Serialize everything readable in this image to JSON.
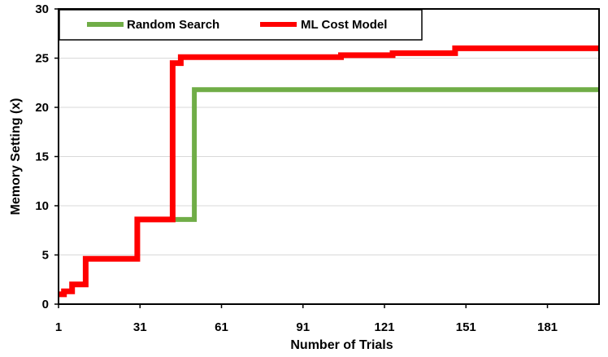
{
  "chart_data": {
    "type": "line",
    "title": "",
    "xlabel": "Number of Trials",
    "ylabel": "Memory Setting (x)",
    "xlim": [
      1,
      200
    ],
    "ylim": [
      0,
      30
    ],
    "xticks": [
      1,
      31,
      61,
      91,
      121,
      151,
      181
    ],
    "yticks": [
      0,
      5,
      10,
      15,
      20,
      25,
      30
    ],
    "legend_position": "top-left",
    "step": true,
    "series": [
      {
        "name": "Random Search",
        "color": "#70ad47",
        "points": [
          [
            1,
            1.0
          ],
          [
            3,
            1.0
          ],
          [
            3,
            1.3
          ],
          [
            6,
            1.3
          ],
          [
            6,
            2.0
          ],
          [
            11,
            2.0
          ],
          [
            11,
            4.6
          ],
          [
            30,
            4.6
          ],
          [
            30,
            8.6
          ],
          [
            51,
            8.6
          ],
          [
            51,
            21.8
          ],
          [
            200,
            21.8
          ]
        ]
      },
      {
        "name": "ML Cost Model",
        "color": "#ff0000",
        "points": [
          [
            1,
            1.0
          ],
          [
            3,
            1.0
          ],
          [
            3,
            1.3
          ],
          [
            6,
            1.3
          ],
          [
            6,
            2.0
          ],
          [
            11,
            2.0
          ],
          [
            11,
            4.6
          ],
          [
            30,
            4.6
          ],
          [
            30,
            8.6
          ],
          [
            43,
            8.6
          ],
          [
            43,
            24.5
          ],
          [
            46,
            24.5
          ],
          [
            46,
            25.1
          ],
          [
            105,
            25.1
          ],
          [
            105,
            25.3
          ],
          [
            124,
            25.3
          ],
          [
            124,
            25.5
          ],
          [
            147,
            25.5
          ],
          [
            147,
            26.0
          ],
          [
            200,
            26.0
          ]
        ]
      }
    ]
  }
}
